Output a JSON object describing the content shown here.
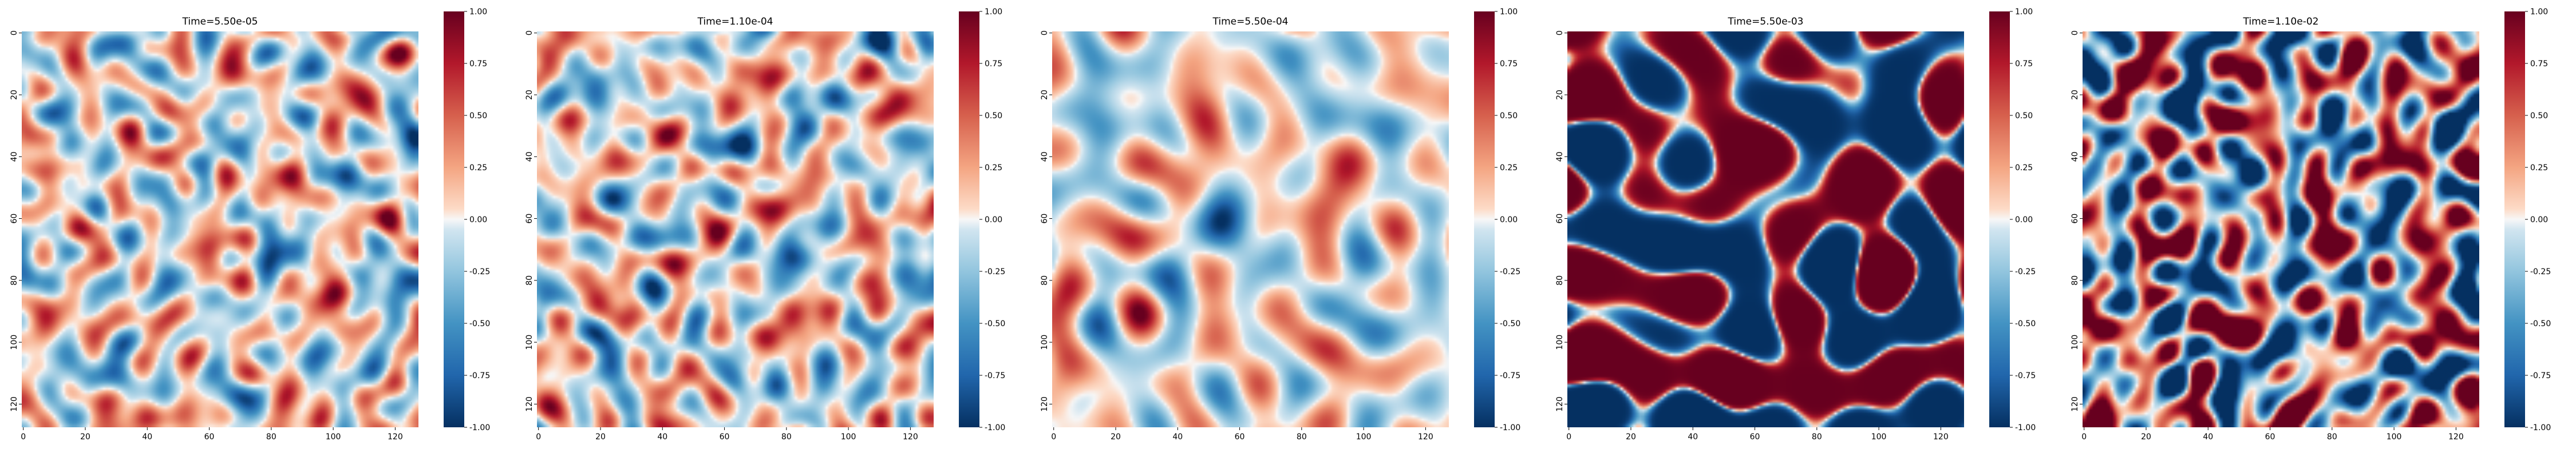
{
  "figure": {
    "colormap": "RdBu_r",
    "colors": {
      "positive": "#67001f",
      "mid": "#f7f7f7",
      "negative": "#053061"
    },
    "colorbar": {
      "ticks": [
        "1.00",
        "0.75",
        "0.50",
        "0.25",
        "0.00",
        "-0.25",
        "-0.50",
        "-0.75",
        "-1.00"
      ],
      "range": [
        -1.0,
        1.0
      ]
    }
  },
  "chart_data": [
    {
      "type": "heatmap",
      "title": "Time=5.50e-05",
      "xlim": [
        0,
        128
      ],
      "ylim": [
        0,
        128
      ],
      "x_ticks": [
        "0",
        "20",
        "40",
        "60",
        "80",
        "100",
        "120"
      ],
      "y_ticks": [
        "0",
        "20",
        "40",
        "60",
        "80",
        "100",
        "120"
      ],
      "value_range": [
        -1.0,
        1.0
      ],
      "amplitude": 0.45,
      "pattern": "fine random noise"
    },
    {
      "type": "heatmap",
      "title": "Time=1.10e-04",
      "xlim": [
        0,
        128
      ],
      "ylim": [
        0,
        128
      ],
      "x_ticks": [
        "0",
        "20",
        "40",
        "60",
        "80",
        "100",
        "120"
      ],
      "y_ticks": [
        "0",
        "20",
        "40",
        "60",
        "80",
        "100",
        "120"
      ],
      "value_range": [
        -1.0,
        1.0
      ],
      "amplitude": 0.42,
      "pattern": "fine random noise"
    },
    {
      "type": "heatmap",
      "title": "Time=5.50e-04",
      "xlim": [
        0,
        128
      ],
      "ylim": [
        0,
        128
      ],
      "x_ticks": [
        "0",
        "20",
        "40",
        "60",
        "80",
        "100",
        "120"
      ],
      "y_ticks": [
        "0",
        "20",
        "40",
        "60",
        "80",
        "100",
        "120"
      ],
      "value_range": [
        -1.0,
        1.0
      ],
      "amplitude": 0.38,
      "pattern": "smoothed noise"
    },
    {
      "type": "heatmap",
      "title": "Time=5.50e-03",
      "xlim": [
        0,
        128
      ],
      "ylim": [
        0,
        128
      ],
      "x_ticks": [
        "0",
        "20",
        "40",
        "60",
        "80",
        "100",
        "120"
      ],
      "y_ticks": [
        "0",
        "20",
        "40",
        "60",
        "80",
        "100",
        "120"
      ],
      "value_range": [
        -1.0,
        1.0
      ],
      "amplitude": 1.0,
      "pattern": "labyrinthine phase separation"
    },
    {
      "type": "heatmap",
      "title": "Time=1.10e-02",
      "xlim": [
        0,
        128
      ],
      "ylim": [
        0,
        128
      ],
      "x_ticks": [
        "0",
        "20",
        "40",
        "60",
        "80",
        "100",
        "120"
      ],
      "y_ticks": [
        "0",
        "20",
        "40",
        "60",
        "80",
        "100",
        "120"
      ],
      "value_range": [
        -1.0,
        1.0
      ],
      "amplitude": 1.0,
      "pattern": "coarsened labyrinthine phase separation"
    }
  ]
}
